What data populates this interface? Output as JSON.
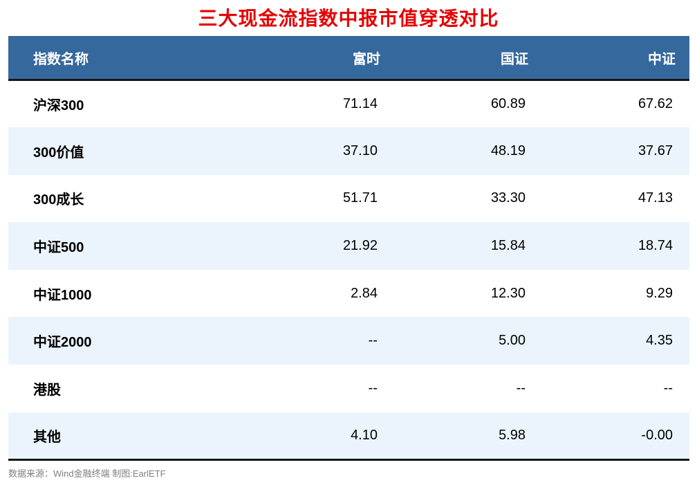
{
  "title": "三大现金流指数中报市值穿透对比",
  "footer": {
    "source": "数据来源：Wind金融终端 制图:EarlETF"
  },
  "colors": {
    "title": "#e60000",
    "header_bg": "#35689d",
    "header_text": "#ffffff",
    "stripe_bg": "#ebf4fc",
    "row_text": "#000000",
    "footer_text": "#7f7f7f",
    "border": "#161616"
  },
  "chart_data": {
    "type": "table",
    "title": "三大现金流指数中报市值穿透对比",
    "columns": [
      "指数名称",
      "富时",
      "国证",
      "中证"
    ],
    "rows": [
      {
        "label": "沪深300",
        "values": [
          "71.14",
          "60.89",
          "67.62"
        ]
      },
      {
        "label": "300价值",
        "values": [
          "37.10",
          "48.19",
          "37.67"
        ]
      },
      {
        "label": "300成长",
        "values": [
          "51.71",
          "33.30",
          "47.13"
        ]
      },
      {
        "label": "中证500",
        "values": [
          "21.92",
          "15.84",
          "18.74"
        ]
      },
      {
        "label": "中证1000",
        "values": [
          "2.84",
          "12.30",
          "9.29"
        ]
      },
      {
        "label": "中证2000",
        "values": [
          "--",
          "5.00",
          "4.35"
        ]
      },
      {
        "label": "港股",
        "values": [
          "--",
          "--",
          "--"
        ]
      },
      {
        "label": "其他",
        "values": [
          "4.10",
          "5.98",
          "-0.00"
        ]
      }
    ],
    "layout": {
      "stripe_rows": "even",
      "numeric_alignment": "right",
      "legend_position": "none",
      "grid": "off"
    }
  }
}
